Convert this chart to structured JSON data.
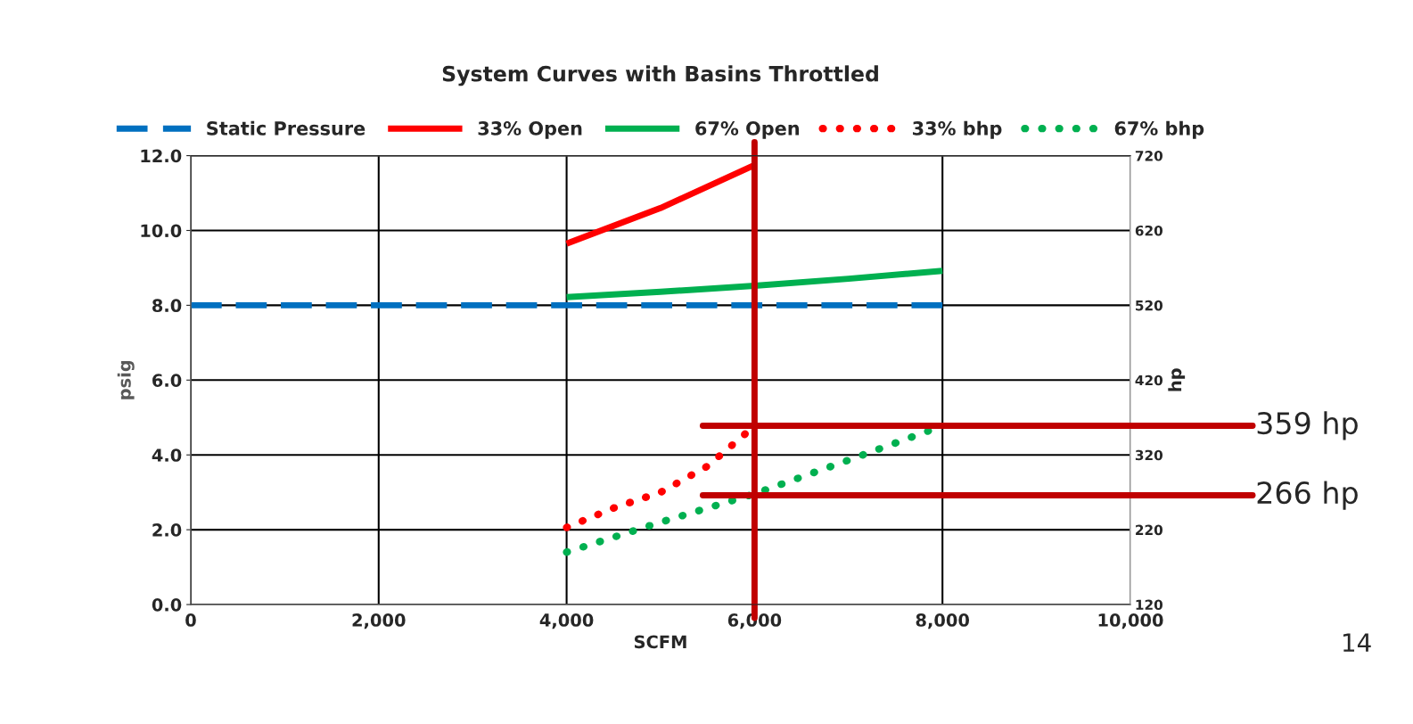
{
  "chart_data": {
    "type": "line",
    "title": "System Curves with Basins Throttled",
    "xlabel": "SCFM",
    "ylabel": "psig",
    "y2label": "hp",
    "series": [
      {
        "name": "Static Pressure",
        "color": "#0070c0",
        "line_style": "dashed",
        "x": [
          0,
          8000
        ],
        "values": [
          8.0,
          8.0
        ]
      },
      {
        "name": "33% Open",
        "color": "#ff0000",
        "line_style": "solid",
        "x": [
          4000,
          5000,
          6000
        ],
        "values": [
          9.65,
          10.6,
          11.75
        ]
      },
      {
        "name": "67% Open",
        "color": "#00b050",
        "line_style": "solid",
        "x": [
          4000,
          5000,
          6000,
          7000,
          8000
        ],
        "values": [
          8.22,
          8.36,
          8.52,
          8.71,
          8.92
        ]
      },
      {
        "name": "33% bhp",
        "color": "#ff0000",
        "line_style": "dotted",
        "axis": "y2",
        "x": [
          4000,
          4500,
          5000,
          5500,
          5900
        ],
        "values": [
          223,
          249,
          270,
          305,
          348
        ]
      },
      {
        "name": "67% bhp",
        "color": "#00b050",
        "line_style": "dotted",
        "axis": "y2",
        "x": [
          4000,
          5000,
          6000,
          7000,
          7850
        ],
        "values": [
          190,
          230,
          268,
          313,
          352
        ]
      }
    ],
    "xlim": [
      0,
      10000
    ],
    "xticks": [
      {
        "value": 0,
        "label": "0"
      },
      {
        "value": 2000,
        "label": "2,000"
      },
      {
        "value": 4000,
        "label": "4,000"
      },
      {
        "value": 6000,
        "label": "6,000"
      },
      {
        "value": 8000,
        "label": "8,000"
      },
      {
        "value": 10000,
        "label": "10,000"
      }
    ],
    "ylim": [
      0,
      12
    ],
    "yticks": [
      {
        "value": 0,
        "label": "0.0"
      },
      {
        "value": 2,
        "label": "2.0"
      },
      {
        "value": 4,
        "label": "4.0"
      },
      {
        "value": 6,
        "label": "6.0"
      },
      {
        "value": 8,
        "label": "8.0"
      },
      {
        "value": 10,
        "label": "10.0"
      },
      {
        "value": 12,
        "label": "12.0"
      }
    ],
    "y2lim": [
      120,
      720
    ],
    "y2ticks": [
      120,
      220,
      320,
      420,
      520,
      620,
      720
    ],
    "ref_lines": [
      {
        "axis": "x",
        "value": 6000,
        "color": "#c00000"
      },
      {
        "axis": "y2",
        "value": 359,
        "label": "359 hp",
        "color": "#c00000"
      },
      {
        "axis": "y2",
        "value": 266,
        "label": "266 hp",
        "color": "#c00000"
      }
    ],
    "grid": true,
    "legend": "top",
    "marker": "none",
    "annotations": [
      "14"
    ]
  }
}
